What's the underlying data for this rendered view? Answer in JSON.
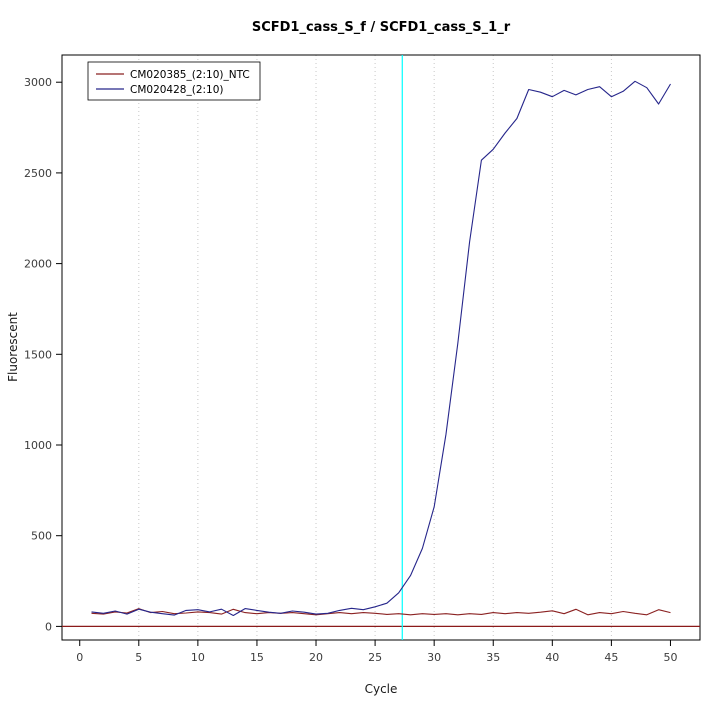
{
  "page": {
    "background": "#ffffff"
  },
  "chart_data": {
    "type": "line",
    "title": "SCFD1_cass_S_f / SCFD1_cass_S_1_r",
    "xlabel": "Cycle",
    "ylabel": "Fluorescent",
    "xlim": [
      -1.5,
      52.5
    ],
    "ylim": [
      -75,
      3150
    ],
    "x_ticks": [
      0,
      5,
      10,
      15,
      20,
      25,
      30,
      35,
      40,
      45,
      50
    ],
    "y_ticks": [
      0,
      500,
      1000,
      1500,
      2000,
      2500,
      3000
    ],
    "grid": {
      "vertical_dotted_at": [
        5,
        10,
        15,
        20,
        25,
        30,
        35,
        40,
        45
      ],
      "color": "#c8c8c8"
    },
    "threshold_line": {
      "orientation": "horizontal",
      "y": 0,
      "color": "#8b1a1a"
    },
    "ct_line": {
      "orientation": "vertical",
      "x": 27.3,
      "color": "#00ffff"
    },
    "legend": {
      "position": "top-left"
    },
    "x": [
      1,
      2,
      3,
      4,
      5,
      6,
      7,
      8,
      9,
      10,
      11,
      12,
      13,
      14,
      15,
      16,
      17,
      18,
      19,
      20,
      21,
      22,
      23,
      24,
      25,
      26,
      27,
      28,
      29,
      30,
      31,
      32,
      33,
      34,
      35,
      36,
      37,
      38,
      39,
      40,
      41,
      42,
      43,
      44,
      45,
      46,
      47,
      48,
      49,
      50
    ],
    "series": [
      {
        "name": "CM020385_(2:10)_NTC",
        "color": "#8b2222",
        "values": [
          72,
          68,
          80,
          74,
          98,
          76,
          82,
          70,
          74,
          80,
          76,
          68,
          94,
          76,
          70,
          76,
          72,
          76,
          70,
          64,
          70,
          76,
          70,
          76,
          72,
          66,
          70,
          64,
          70,
          66,
          70,
          64,
          70,
          66,
          76,
          70,
          76,
          72,
          78,
          86,
          70,
          94,
          64,
          76,
          70,
          82,
          72,
          64,
          92,
          76
        ]
      },
      {
        "name": "CM020428_(2:10)",
        "color": "#26268b",
        "values": [
          80,
          72,
          85,
          68,
          95,
          78,
          70,
          62,
          88,
          92,
          80,
          95,
          60,
          98,
          88,
          78,
          72,
          85,
          78,
          68,
          72,
          88,
          100,
          92,
          108,
          128,
          185,
          280,
          430,
          660,
          1060,
          1560,
          2120,
          2570,
          2630,
          2720,
          2800,
          2960,
          2945,
          2920,
          2955,
          2930,
          2960,
          2975,
          2920,
          2950,
          3005,
          2970,
          2880,
          2990
        ]
      }
    ]
  }
}
